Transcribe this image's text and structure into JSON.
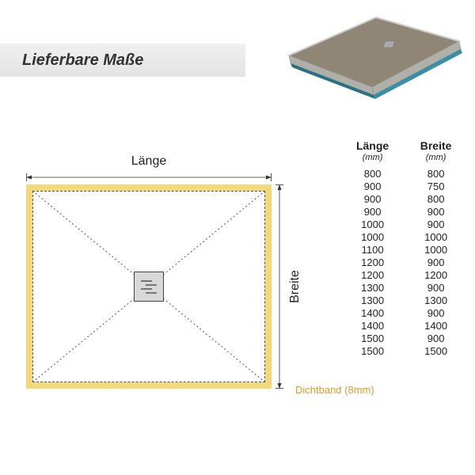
{
  "title": "Lieferbare Maße",
  "diagram": {
    "length_label": "Länge",
    "width_label": "Breite",
    "dichtband_label": "Dichtband (8mm)",
    "band_color": "#f4d97a",
    "dichtband_text_color": "#e09a2a",
    "inner_bg": "#ffffff",
    "dash_color": "#555555",
    "drain_bg": "#d8d8d8",
    "drain_border": "#444444"
  },
  "product": {
    "top_color": "#8f8676",
    "side_color": "#b0b0a8",
    "edge_color": "#3a8fa8",
    "base_edge": "#2a6f85"
  },
  "table": {
    "headers": {
      "col1": "Länge",
      "col2": "Breite"
    },
    "units": {
      "col1": "(mm)",
      "col2": "(mm)"
    },
    "rows": [
      [
        800,
        800
      ],
      [
        900,
        750
      ],
      [
        900,
        800
      ],
      [
        900,
        900
      ],
      [
        1000,
        900
      ],
      [
        1000,
        1000
      ],
      [
        1100,
        1000
      ],
      [
        1200,
        900
      ],
      [
        1200,
        1200
      ],
      [
        1300,
        900
      ],
      [
        1300,
        1300
      ],
      [
        1400,
        900
      ],
      [
        1400,
        1400
      ],
      [
        1500,
        900
      ],
      [
        1500,
        1500
      ]
    ]
  }
}
